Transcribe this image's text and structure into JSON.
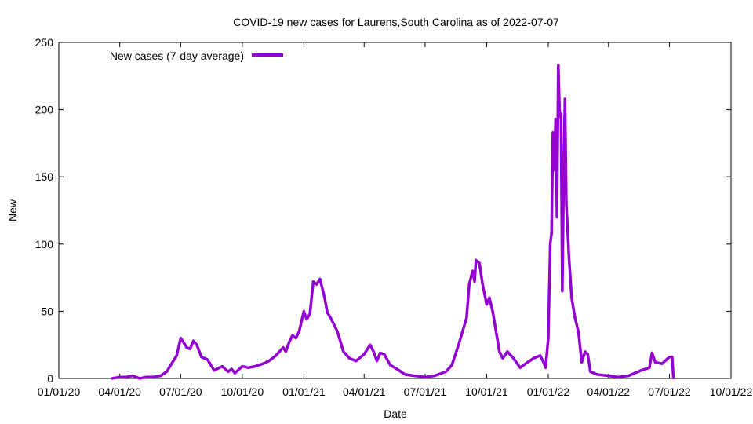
{
  "chart_data": {
    "type": "line",
    "title": "COVID-19 new cases for Laurens,South Carolina as of 2022-07-07",
    "xlabel": "Date",
    "ylabel": "New",
    "ylim": [
      0,
      250
    ],
    "yticks": [
      0,
      50,
      100,
      150,
      200,
      250
    ],
    "xlim": [
      "2020-01-01",
      "2022-10-01"
    ],
    "xticks": [
      {
        "date": "2020-01-01",
        "label": "01/01/20"
      },
      {
        "date": "2020-04-01",
        "label": "04/01/20"
      },
      {
        "date": "2020-07-01",
        "label": "07/01/20"
      },
      {
        "date": "2020-10-01",
        "label": "10/01/20"
      },
      {
        "date": "2021-01-01",
        "label": "01/01/21"
      },
      {
        "date": "2021-04-01",
        "label": "04/01/21"
      },
      {
        "date": "2021-07-01",
        "label": "07/01/21"
      },
      {
        "date": "2021-10-01",
        "label": "10/01/21"
      },
      {
        "date": "2022-01-01",
        "label": "01/01/22"
      },
      {
        "date": "2022-04-01",
        "label": "04/01/22"
      },
      {
        "date": "2022-07-01",
        "label": "07/01/22"
      },
      {
        "date": "2022-10-01",
        "label": "10/01/22"
      }
    ],
    "grid": false,
    "legend_position": "top-left",
    "series": [
      {
        "name": "New cases (7-day average)",
        "color": "#9400d3",
        "points": [
          [
            "2020-03-20",
            0
          ],
          [
            "2020-04-01",
            1
          ],
          [
            "2020-04-10",
            1
          ],
          [
            "2020-04-20",
            2
          ],
          [
            "2020-05-01",
            0
          ],
          [
            "2020-05-10",
            1
          ],
          [
            "2020-05-20",
            1
          ],
          [
            "2020-06-01",
            2
          ],
          [
            "2020-06-10",
            5
          ],
          [
            "2020-06-20",
            13
          ],
          [
            "2020-06-25",
            17
          ],
          [
            "2020-07-01",
            30
          ],
          [
            "2020-07-05",
            27
          ],
          [
            "2020-07-10",
            23
          ],
          [
            "2020-07-15",
            22
          ],
          [
            "2020-07-20",
            28
          ],
          [
            "2020-07-25",
            25
          ],
          [
            "2020-08-01",
            16
          ],
          [
            "2020-08-10",
            14
          ],
          [
            "2020-08-15",
            10
          ],
          [
            "2020-08-20",
            6
          ],
          [
            "2020-09-01",
            9
          ],
          [
            "2020-09-10",
            5
          ],
          [
            "2020-09-15",
            7
          ],
          [
            "2020-09-20",
            4
          ],
          [
            "2020-10-01",
            9
          ],
          [
            "2020-10-10",
            8
          ],
          [
            "2020-10-20",
            9
          ],
          [
            "2020-11-01",
            11
          ],
          [
            "2020-11-10",
            13
          ],
          [
            "2020-11-20",
            17
          ],
          [
            "2020-12-01",
            23
          ],
          [
            "2020-12-05",
            20
          ],
          [
            "2020-12-10",
            27
          ],
          [
            "2020-12-15",
            32
          ],
          [
            "2020-12-20",
            30
          ],
          [
            "2020-12-25",
            35
          ],
          [
            "2021-01-01",
            50
          ],
          [
            "2021-01-05",
            44
          ],
          [
            "2021-01-10",
            48
          ],
          [
            "2021-01-15",
            72
          ],
          [
            "2021-01-20",
            70
          ],
          [
            "2021-01-25",
            74
          ],
          [
            "2021-02-01",
            60
          ],
          [
            "2021-02-05",
            49
          ],
          [
            "2021-02-10",
            45
          ],
          [
            "2021-02-15",
            40
          ],
          [
            "2021-02-20",
            35
          ],
          [
            "2021-03-01",
            20
          ],
          [
            "2021-03-10",
            15
          ],
          [
            "2021-03-20",
            13
          ],
          [
            "2021-04-01",
            18
          ],
          [
            "2021-04-10",
            25
          ],
          [
            "2021-04-15",
            20
          ],
          [
            "2021-04-20",
            13
          ],
          [
            "2021-04-25",
            19
          ],
          [
            "2021-05-01",
            18
          ],
          [
            "2021-05-10",
            10
          ],
          [
            "2021-05-20",
            7
          ],
          [
            "2021-06-01",
            3
          ],
          [
            "2021-06-15",
            2
          ],
          [
            "2021-07-01",
            1
          ],
          [
            "2021-07-15",
            2
          ],
          [
            "2021-08-01",
            5
          ],
          [
            "2021-08-10",
            10
          ],
          [
            "2021-08-20",
            25
          ],
          [
            "2021-09-01",
            45
          ],
          [
            "2021-09-05",
            70
          ],
          [
            "2021-09-10",
            80
          ],
          [
            "2021-09-13",
            72
          ],
          [
            "2021-09-15",
            88
          ],
          [
            "2021-09-20",
            86
          ],
          [
            "2021-09-25",
            70
          ],
          [
            "2021-10-01",
            55
          ],
          [
            "2021-10-05",
            60
          ],
          [
            "2021-10-10",
            50
          ],
          [
            "2021-10-15",
            35
          ],
          [
            "2021-10-20",
            20
          ],
          [
            "2021-10-25",
            15
          ],
          [
            "2021-11-01",
            20
          ],
          [
            "2021-11-10",
            15
          ],
          [
            "2021-11-20",
            8
          ],
          [
            "2021-12-01",
            12
          ],
          [
            "2021-12-10",
            15
          ],
          [
            "2021-12-20",
            17
          ],
          [
            "2021-12-25",
            12
          ],
          [
            "2021-12-28",
            8
          ],
          [
            "2022-01-01",
            30
          ],
          [
            "2022-01-04",
            100
          ],
          [
            "2022-01-06",
            108
          ],
          [
            "2022-01-08",
            183
          ],
          [
            "2022-01-10",
            155
          ],
          [
            "2022-01-12",
            193
          ],
          [
            "2022-01-14",
            120
          ],
          [
            "2022-01-16",
            233
          ],
          [
            "2022-01-18",
            195
          ],
          [
            "2022-01-20",
            197
          ],
          [
            "2022-01-22",
            65
          ],
          [
            "2022-01-24",
            150
          ],
          [
            "2022-01-26",
            208
          ],
          [
            "2022-01-28",
            130
          ],
          [
            "2022-02-01",
            90
          ],
          [
            "2022-02-05",
            60
          ],
          [
            "2022-02-10",
            45
          ],
          [
            "2022-02-15",
            35
          ],
          [
            "2022-02-20",
            12
          ],
          [
            "2022-02-25",
            20
          ],
          [
            "2022-03-01",
            18
          ],
          [
            "2022-03-05",
            5
          ],
          [
            "2022-03-15",
            3
          ],
          [
            "2022-04-01",
            2
          ],
          [
            "2022-04-15",
            1
          ],
          [
            "2022-05-01",
            2
          ],
          [
            "2022-05-10",
            4
          ],
          [
            "2022-05-20",
            6
          ],
          [
            "2022-06-01",
            8
          ],
          [
            "2022-06-05",
            19
          ],
          [
            "2022-06-10",
            12
          ],
          [
            "2022-06-20",
            11
          ],
          [
            "2022-07-01",
            16
          ],
          [
            "2022-07-05",
            16
          ],
          [
            "2022-07-07",
            0
          ]
        ]
      }
    ]
  }
}
